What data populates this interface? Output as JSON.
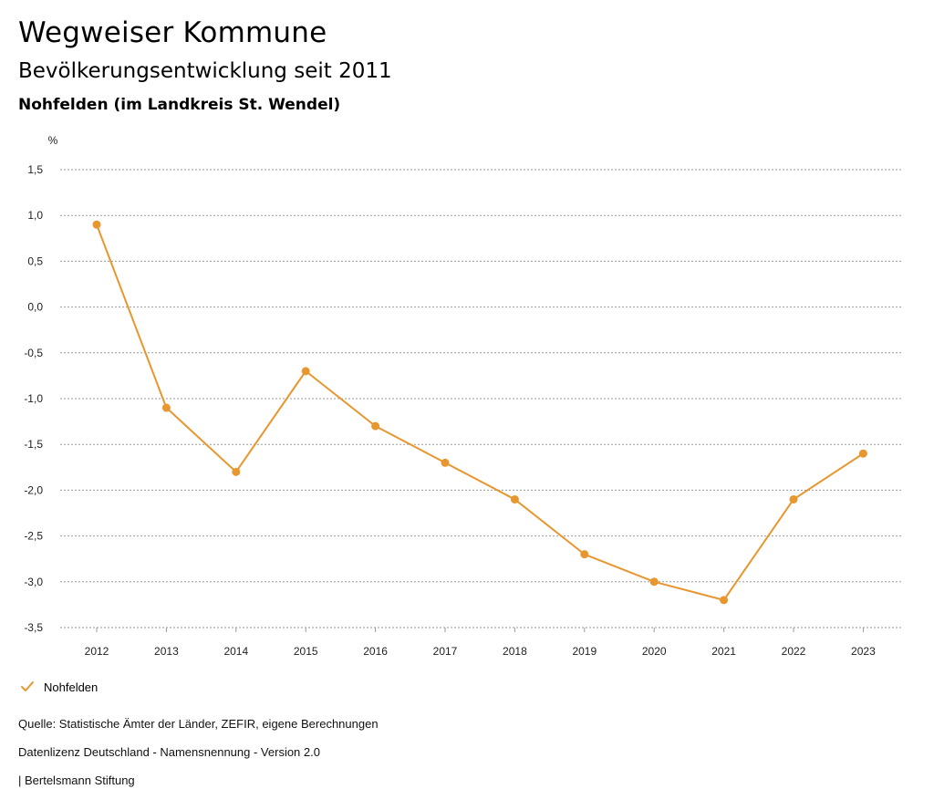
{
  "header": {
    "title": "Wegweiser Kommune",
    "subtitle": "Bevölkerungsentwicklung seit 2011",
    "region": "Nohfelden (im Landkreis St. Wendel)"
  },
  "chart_data": {
    "type": "line",
    "ylabel": "%",
    "xlabel": "",
    "categories": [
      "2012",
      "2013",
      "2014",
      "2015",
      "2016",
      "2017",
      "2018",
      "2019",
      "2020",
      "2021",
      "2022",
      "2023"
    ],
    "series": [
      {
        "name": "Nohfelden",
        "color": "#E8962E",
        "values": [
          0.9,
          -1.1,
          -1.8,
          -0.7,
          -1.3,
          -1.7,
          -2.1,
          -2.7,
          -3.0,
          -3.2,
          -2.1,
          -1.6
        ]
      }
    ],
    "yticks": [
      1.5,
      1.0,
      0.5,
      0.0,
      -0.5,
      -1.0,
      -1.5,
      -2.0,
      -2.5,
      -3.0,
      -3.5
    ],
    "ytick_labels": [
      "1,5",
      "1,0",
      "0,5",
      "0,0",
      "-0,5",
      "-1,0",
      "-1,5",
      "-2,0",
      "-2,5",
      "-3,0",
      "-3,5"
    ],
    "ylim": [
      -3.5,
      1.5
    ],
    "grid": true,
    "legend_position": "bottom-left"
  },
  "legend": {
    "label": "Nohfelden",
    "icon": "check-icon",
    "color": "#E8962E"
  },
  "footer": {
    "source": "Quelle: Statistische Ämter der Länder, ZEFIR, eigene Berechnungen",
    "license": "Datenlizenz Deutschland - Namensnennung - Version 2.0",
    "publisher": "| Bertelsmann Stiftung"
  }
}
